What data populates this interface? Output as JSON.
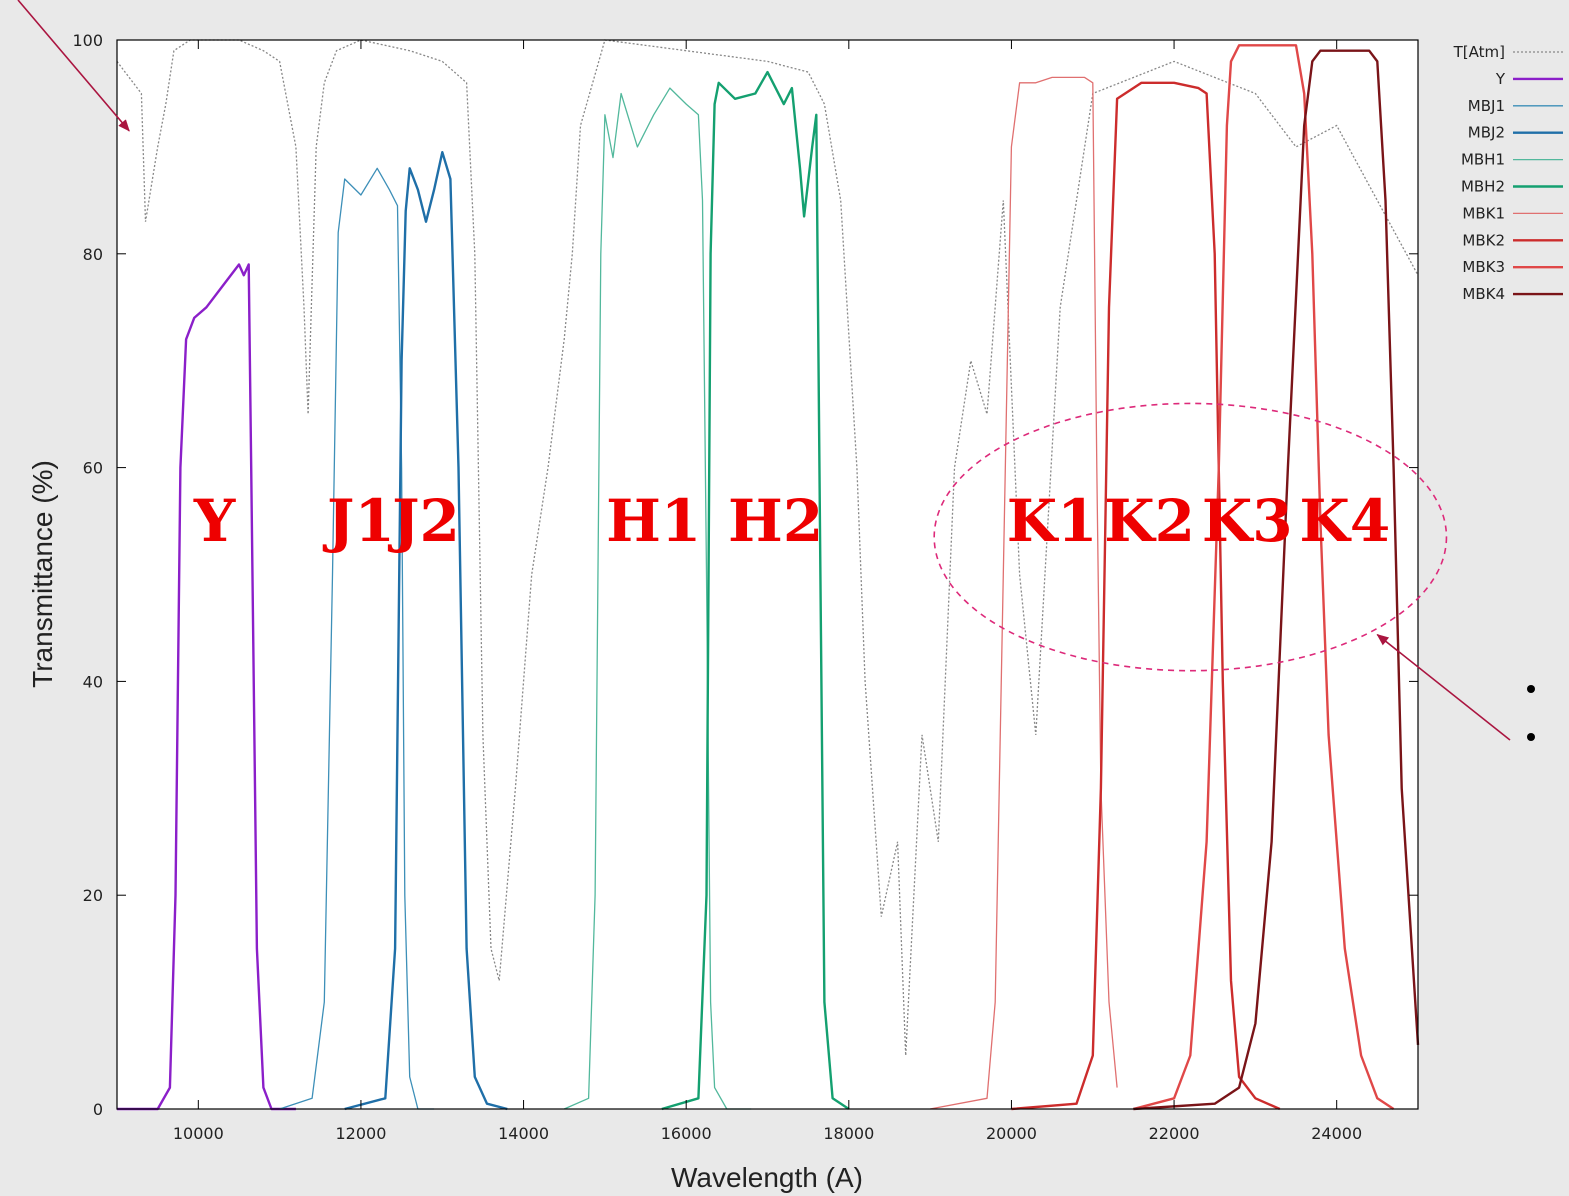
{
  "chart_data": {
    "type": "line",
    "xlabel": "Wavelength (A)",
    "ylabel": "Transmittance (%)",
    "xlim": [
      9000,
      25000
    ],
    "ylim": [
      0,
      100
    ],
    "xticks": [
      10000,
      12000,
      14000,
      16000,
      18000,
      20000,
      22000,
      24000
    ],
    "yticks": [
      0,
      20,
      40,
      60,
      80,
      100
    ],
    "grid": false,
    "legend_position": "right",
    "atmosphere": {
      "name": "T[Atm]",
      "color": "#888888",
      "x": [
        9000,
        9100,
        9300,
        9350,
        9500,
        9600,
        9700,
        9900,
        10500,
        10800,
        11000,
        11200,
        11300,
        11350,
        11450,
        11550,
        11700,
        12000,
        12600,
        13000,
        13300,
        13400,
        13500,
        13600,
        13700,
        13900,
        14100,
        14300,
        14500,
        14600,
        14700,
        15000,
        16000,
        17000,
        17500,
        17700,
        17900,
        18100,
        18200,
        18400,
        18600,
        18700,
        18900,
        19100,
        19300,
        19500,
        19700,
        19900,
        20100,
        20300,
        20600,
        21000,
        22000,
        23000,
        23500,
        24000,
        24500,
        25000
      ],
      "y": [
        98,
        97,
        95,
        83,
        90,
        94,
        99,
        100,
        100,
        99,
        98,
        90,
        75,
        65,
        90,
        96,
        99,
        100,
        99,
        98,
        96,
        80,
        35,
        15,
        12,
        30,
        50,
        60,
        72,
        80,
        92,
        100,
        99,
        98,
        97,
        94,
        85,
        60,
        40,
        18,
        25,
        5,
        35,
        25,
        60,
        70,
        65,
        85,
        50,
        35,
        75,
        95,
        98,
        95,
        90,
        92,
        85,
        78
      ]
    },
    "series": [
      {
        "name": "Y",
        "color": "#8b1fc9",
        "width": 2.4,
        "x": [
          9000,
          9500,
          9650,
          9720,
          9780,
          9850,
          9950,
          10100,
          10300,
          10500,
          10560,
          10620,
          10650,
          10720,
          10800,
          10900,
          11200
        ],
        "y": [
          0,
          0,
          2,
          20,
          60,
          72,
          74,
          75,
          77,
          79,
          78,
          79,
          60,
          15,
          2,
          0,
          0
        ]
      },
      {
        "name": "MBJ1",
        "color": "#3d8fb8",
        "width": 1.3,
        "x": [
          11000,
          11400,
          11550,
          11650,
          11720,
          11800,
          12000,
          12200,
          12350,
          12450,
          12500,
          12540,
          12600,
          12700,
          12900
        ],
        "y": [
          0,
          1,
          10,
          50,
          82,
          87,
          85.5,
          88,
          86,
          84.5,
          60,
          20,
          3,
          0,
          0
        ]
      },
      {
        "name": "MBJ2",
        "color": "#1f6fa8",
        "width": 2.4,
        "x": [
          11800,
          12300,
          12420,
          12500,
          12550,
          12600,
          12700,
          12800,
          12900,
          13000,
          13100,
          13200,
          13300,
          13400,
          13550,
          13800
        ],
        "y": [
          0,
          1,
          15,
          70,
          84,
          88,
          86,
          83,
          86,
          89.5,
          87,
          60,
          15,
          3,
          0.5,
          0
        ]
      },
      {
        "name": "MBH1",
        "color": "#52b89c",
        "width": 1.3,
        "x": [
          14500,
          14800,
          14880,
          14950,
          15000,
          15100,
          15200,
          15400,
          15600,
          15800,
          16000,
          16150,
          16200,
          16250,
          16300,
          16350,
          16500,
          16800
        ],
        "y": [
          0,
          1,
          20,
          80,
          93,
          89,
          95,
          90,
          93,
          95.5,
          94,
          93,
          85,
          50,
          10,
          2,
          0,
          0
        ]
      },
      {
        "name": "MBH2",
        "color": "#14a070",
        "width": 2.4,
        "x": [
          15700,
          16150,
          16250,
          16300,
          16350,
          16400,
          16600,
          16850,
          17000,
          17200,
          17300,
          17400,
          17450,
          17550,
          17600,
          17650,
          17700,
          17800,
          18000
        ],
        "y": [
          0,
          1,
          20,
          80,
          94,
          96,
          94.5,
          95,
          97,
          94,
          95.5,
          88,
          83.5,
          90,
          93,
          50,
          10,
          1,
          0
        ]
      },
      {
        "name": "MBK1",
        "color": "#e07070",
        "width": 1.3,
        "x": [
          19000,
          19700,
          19800,
          19900,
          20000,
          20100,
          20300,
          20500,
          20700,
          20900,
          21000,
          21050,
          21100,
          21200,
          21300
        ],
        "y": [
          0,
          1,
          10,
          50,
          90,
          96,
          96,
          96.5,
          96.5,
          96.5,
          96,
          60,
          30,
          10,
          2
        ]
      },
      {
        "name": "MBK2",
        "color": "#cc2c2c",
        "width": 2.4,
        "x": [
          20000,
          20800,
          21000,
          21100,
          21200,
          21300,
          21600,
          22000,
          22300,
          22400,
          22500,
          22600,
          22700,
          22800,
          23000,
          23300
        ],
        "y": [
          0,
          0.5,
          5,
          30,
          75,
          94.5,
          96,
          96,
          95.5,
          95,
          80,
          40,
          12,
          3,
          1,
          0
        ]
      },
      {
        "name": "MBK3",
        "color": "#e04848",
        "width": 2.4,
        "x": [
          21500,
          22000,
          22200,
          22400,
          22550,
          22650,
          22700,
          22800,
          23000,
          23300,
          23500,
          23600,
          23700,
          23800,
          23900,
          24100,
          24300,
          24500,
          24700
        ],
        "y": [
          0,
          1,
          5,
          25,
          60,
          92,
          98,
          99.5,
          99.5,
          99.5,
          99.5,
          95,
          80,
          55,
          35,
          15,
          5,
          1,
          0
        ]
      },
      {
        "name": "MBK4",
        "color": "#7a1418",
        "width": 2.4,
        "x": [
          21500,
          22500,
          22800,
          23000,
          23200,
          23400,
          23600,
          23700,
          23800,
          24000,
          24200,
          24400,
          24500,
          24600,
          24700,
          24800,
          25000
        ],
        "y": [
          0,
          0.5,
          2,
          8,
          25,
          60,
          92,
          98,
          99,
          99,
          99,
          99,
          98,
          85,
          60,
          30,
          6
        ]
      }
    ],
    "band_labels": [
      {
        "text": "Y",
        "x": 10200,
        "y": 55
      },
      {
        "text": "J1",
        "x": 12000,
        "y": 55
      },
      {
        "text": "J2",
        "x": 12800,
        "y": 55
      },
      {
        "text": "H1",
        "x": 15600,
        "y": 55
      },
      {
        "text": "H2",
        "x": 17100,
        "y": 55
      },
      {
        "text": "K1",
        "x": 20500,
        "y": 55
      },
      {
        "text": "K2",
        "x": 21700,
        "y": 55
      },
      {
        "text": "K3",
        "x": 22900,
        "y": 55
      },
      {
        "text": "K4",
        "x": 24100,
        "y": 55
      }
    ],
    "band_label_color": "#ee0000",
    "highlight": {
      "center_x": 22200,
      "center_y": 53.5,
      "rx_data": 3150,
      "ry_data": 12.5,
      "color": "#dd2a7a"
    },
    "pointer_color": "#aa1540"
  }
}
